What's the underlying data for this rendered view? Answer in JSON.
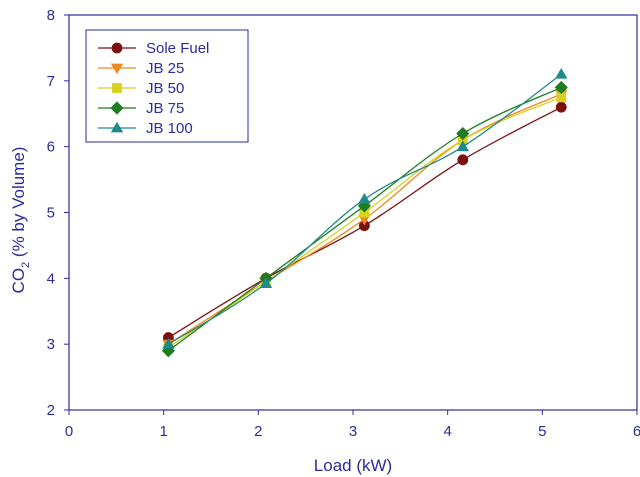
{
  "chart_data": {
    "type": "line",
    "xlabel": "Load (kW)",
    "ylabel_prefix": "CO",
    "ylabel_sub": "2",
    "ylabel_suffix": " (% by Volume)",
    "xlim": [
      0,
      6
    ],
    "ylim": [
      2,
      8
    ],
    "xticks": [
      "0",
      "1",
      "2",
      "3",
      "4",
      "5",
      "6"
    ],
    "yticks": [
      "2",
      "3",
      "4",
      "5",
      "6",
      "7",
      "8"
    ],
    "grid": false,
    "legend_position": "top-left",
    "x": [
      1.05,
      2.08,
      3.12,
      4.16,
      5.2
    ],
    "series": [
      {
        "name": "Sole Fuel",
        "values": [
          3.1,
          4.0,
          4.8,
          5.8,
          6.6
        ],
        "color": "#7b1010",
        "marker": "circle"
      },
      {
        "name": "JB 25",
        "values": [
          3.0,
          3.95,
          4.9,
          6.1,
          6.8
        ],
        "color": "#f08a1c",
        "marker": "triangle-down"
      },
      {
        "name": "JB 50",
        "values": [
          2.95,
          3.95,
          5.0,
          6.1,
          6.75
        ],
        "color": "#d6d21e",
        "marker": "square"
      },
      {
        "name": "JB 75",
        "values": [
          2.9,
          4.0,
          5.1,
          6.2,
          6.9
        ],
        "color": "#1e7d1e",
        "marker": "diamond"
      },
      {
        "name": "JB 100",
        "values": [
          3.0,
          3.92,
          5.2,
          6.0,
          7.1
        ],
        "color": "#1f8a8a",
        "marker": "triangle-up"
      }
    ]
  },
  "colors": {
    "axis": "#2b2b9e",
    "text": "#2b2b9e"
  }
}
